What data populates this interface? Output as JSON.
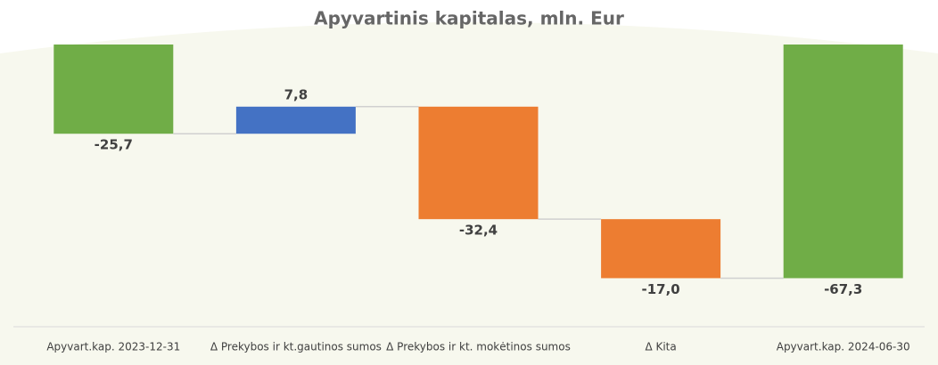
{
  "chart_data": {
    "type": "waterfall",
    "title": "Apyvartinis kapitalas, mln. Eur",
    "categories": [
      "Apyvart.kap. 2023-12-31",
      "Δ Prekybos ir kt.gautinos sumos",
      "Δ Prekybos ir kt. mokėtinos sumos",
      "Δ Kita",
      "Apyvart.kap. 2024-06-30"
    ],
    "values": [
      -25.7,
      7.8,
      -32.4,
      -17.0,
      -67.3
    ],
    "value_labels": [
      "-25,7",
      "7,8",
      "-32,4",
      "-17,0",
      "-67,3"
    ],
    "totals": [
      true,
      false,
      false,
      false,
      true
    ],
    "colors": [
      "#70ad47",
      "#4472c4",
      "#ed7d31",
      "#ed7d31",
      "#70ad47"
    ],
    "ylim": [
      -80,
      0
    ]
  }
}
